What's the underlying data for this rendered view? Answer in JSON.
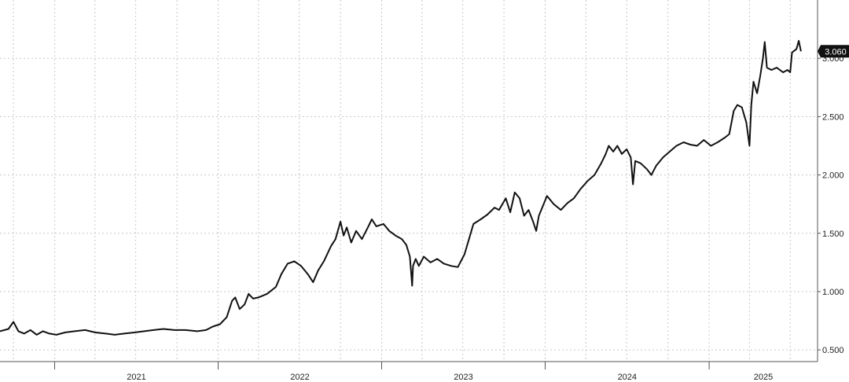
{
  "chart_data": {
    "type": "line",
    "title": "",
    "xlabel": "",
    "ylabel": "",
    "x_tick_labels": [
      "2021",
      "2022",
      "2023",
      "2024",
      "2025"
    ],
    "y_tick_labels": [
      "0.500",
      "1.000",
      "1.500",
      "2.000",
      "2.500",
      "3.000"
    ],
    "ylim": [
      0.4,
      3.5
    ],
    "xlim": [
      "2020-09-01",
      "2025-08-31"
    ],
    "grid": true,
    "last_value_label": "3.060",
    "colors": {
      "line": "#111111",
      "badge": "#111111",
      "badge_text": "#ffffff",
      "grid": "#c8c8c8"
    },
    "series": [
      {
        "points": [
          [
            "2020-09-01",
            0.66
          ],
          [
            "2020-09-20",
            0.68
          ],
          [
            "2020-10-01",
            0.74
          ],
          [
            "2020-10-12",
            0.66
          ],
          [
            "2020-10-25",
            0.64
          ],
          [
            "2020-11-08",
            0.67
          ],
          [
            "2020-11-22",
            0.63
          ],
          [
            "2020-12-06",
            0.66
          ],
          [
            "2020-12-20",
            0.64
          ],
          [
            "2021-01-05",
            0.63
          ],
          [
            "2021-01-25",
            0.65
          ],
          [
            "2021-02-15",
            0.66
          ],
          [
            "2021-03-10",
            0.67
          ],
          [
            "2021-04-01",
            0.65
          ],
          [
            "2021-04-25",
            0.64
          ],
          [
            "2021-05-15",
            0.63
          ],
          [
            "2021-06-05",
            0.64
          ],
          [
            "2021-06-30",
            0.65
          ],
          [
            "2021-07-20",
            0.66
          ],
          [
            "2021-08-10",
            0.67
          ],
          [
            "2021-09-01",
            0.68
          ],
          [
            "2021-09-25",
            0.67
          ],
          [
            "2021-10-20",
            0.67
          ],
          [
            "2021-11-15",
            0.66
          ],
          [
            "2021-12-05",
            0.67
          ],
          [
            "2021-12-20",
            0.7
          ],
          [
            "2022-01-05",
            0.72
          ],
          [
            "2022-01-20",
            0.78
          ],
          [
            "2022-02-01",
            0.92
          ],
          [
            "2022-02-08",
            0.95
          ],
          [
            "2022-02-18",
            0.85
          ],
          [
            "2022-03-01",
            0.89
          ],
          [
            "2022-03-10",
            0.98
          ],
          [
            "2022-03-20",
            0.94
          ],
          [
            "2022-04-01",
            0.95
          ],
          [
            "2022-04-20",
            0.98
          ],
          [
            "2022-05-10",
            1.04
          ],
          [
            "2022-05-22",
            1.15
          ],
          [
            "2022-06-05",
            1.24
          ],
          [
            "2022-06-20",
            1.26
          ],
          [
            "2022-07-05",
            1.22
          ],
          [
            "2022-07-20",
            1.15
          ],
          [
            "2022-08-01",
            1.08
          ],
          [
            "2022-08-12",
            1.18
          ],
          [
            "2022-08-25",
            1.26
          ],
          [
            "2022-09-10",
            1.39
          ],
          [
            "2022-09-20",
            1.45
          ],
          [
            "2022-10-01",
            1.6
          ],
          [
            "2022-10-08",
            1.48
          ],
          [
            "2022-10-15",
            1.55
          ],
          [
            "2022-10-25",
            1.42
          ],
          [
            "2022-11-05",
            1.52
          ],
          [
            "2022-11-18",
            1.45
          ],
          [
            "2022-12-01",
            1.55
          ],
          [
            "2022-12-10",
            1.62
          ],
          [
            "2022-12-20",
            1.56
          ],
          [
            "2023-01-05",
            1.58
          ],
          [
            "2023-01-18",
            1.52
          ],
          [
            "2023-02-01",
            1.48
          ],
          [
            "2023-02-15",
            1.45
          ],
          [
            "2023-02-25",
            1.4
          ],
          [
            "2023-03-05",
            1.3
          ],
          [
            "2023-03-10",
            1.05
          ],
          [
            "2023-03-12",
            1.22
          ],
          [
            "2023-03-18",
            1.28
          ],
          [
            "2023-03-25",
            1.22
          ],
          [
            "2023-04-05",
            1.3
          ],
          [
            "2023-04-20",
            1.25
          ],
          [
            "2023-05-05",
            1.28
          ],
          [
            "2023-05-20",
            1.24
          ],
          [
            "2023-06-05",
            1.22
          ],
          [
            "2023-06-20",
            1.21
          ],
          [
            "2023-07-05",
            1.32
          ],
          [
            "2023-07-15",
            1.45
          ],
          [
            "2023-07-25",
            1.58
          ],
          [
            "2023-08-10",
            1.62
          ],
          [
            "2023-08-25",
            1.66
          ],
          [
            "2023-09-10",
            1.72
          ],
          [
            "2023-09-20",
            1.7
          ],
          [
            "2023-10-05",
            1.8
          ],
          [
            "2023-10-15",
            1.68
          ],
          [
            "2023-10-25",
            1.85
          ],
          [
            "2023-11-05",
            1.8
          ],
          [
            "2023-11-15",
            1.65
          ],
          [
            "2023-11-25",
            1.7
          ],
          [
            "2023-12-05",
            1.6
          ],
          [
            "2023-12-12",
            1.52
          ],
          [
            "2023-12-18",
            1.65
          ],
          [
            "2024-01-05",
            1.82
          ],
          [
            "2024-01-20",
            1.75
          ],
          [
            "2024-02-05",
            1.7
          ],
          [
            "2024-02-20",
            1.76
          ],
          [
            "2024-03-05",
            1.8
          ],
          [
            "2024-03-20",
            1.88
          ],
          [
            "2024-04-05",
            1.95
          ],
          [
            "2024-04-20",
            2.0
          ],
          [
            "2024-05-05",
            2.1
          ],
          [
            "2024-05-15",
            2.18
          ],
          [
            "2024-05-22",
            2.25
          ],
          [
            "2024-06-01",
            2.2
          ],
          [
            "2024-06-10",
            2.25
          ],
          [
            "2024-06-20",
            2.18
          ],
          [
            "2024-07-01",
            2.22
          ],
          [
            "2024-07-10",
            2.15
          ],
          [
            "2024-07-15",
            1.92
          ],
          [
            "2024-07-20",
            2.12
          ],
          [
            "2024-08-01",
            2.1
          ],
          [
            "2024-08-15",
            2.05
          ],
          [
            "2024-08-25",
            2.0
          ],
          [
            "2024-09-05",
            2.08
          ],
          [
            "2024-09-20",
            2.15
          ],
          [
            "2024-10-05",
            2.2
          ],
          [
            "2024-10-20",
            2.25
          ],
          [
            "2024-11-05",
            2.28
          ],
          [
            "2024-11-20",
            2.26
          ],
          [
            "2024-12-05",
            2.25
          ],
          [
            "2024-12-20",
            2.3
          ],
          [
            "2025-01-05",
            2.25
          ],
          [
            "2025-01-20",
            2.28
          ],
          [
            "2025-02-05",
            2.32
          ],
          [
            "2025-02-15",
            2.35
          ],
          [
            "2025-02-25",
            2.55
          ],
          [
            "2025-03-05",
            2.6
          ],
          [
            "2025-03-15",
            2.58
          ],
          [
            "2025-03-25",
            2.45
          ],
          [
            "2025-04-01",
            2.25
          ],
          [
            "2025-04-05",
            2.6
          ],
          [
            "2025-04-10",
            2.8
          ],
          [
            "2025-04-18",
            2.7
          ],
          [
            "2025-04-25",
            2.85
          ],
          [
            "2025-05-01",
            3.0
          ],
          [
            "2025-05-05",
            3.14
          ],
          [
            "2025-05-10",
            2.92
          ],
          [
            "2025-05-20",
            2.9
          ],
          [
            "2025-06-01",
            2.92
          ],
          [
            "2025-06-15",
            2.88
          ],
          [
            "2025-06-25",
            2.9
          ],
          [
            "2025-07-01",
            2.88
          ],
          [
            "2025-07-05",
            3.05
          ],
          [
            "2025-07-15",
            3.08
          ],
          [
            "2025-07-20",
            3.15
          ],
          [
            "2025-07-25",
            3.06
          ]
        ]
      }
    ]
  }
}
